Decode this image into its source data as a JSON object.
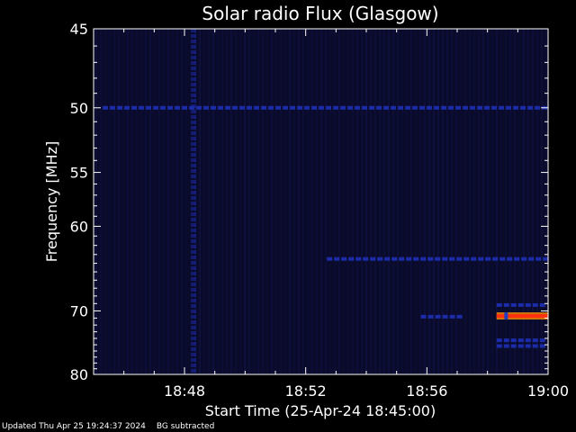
{
  "chart_data": {
    "type": "heatmap",
    "title": "Solar radio Flux (Glasgow)",
    "xlabel": "Start Time (25-Apr-24 18:45:00)",
    "ylabel": "Frequency [MHz]",
    "xlim_minutes": [
      0,
      15
    ],
    "x_ticks": [
      {
        "minute": 3,
        "label": "18:48"
      },
      {
        "minute": 7,
        "label": "18:52"
      },
      {
        "minute": 11,
        "label": "18:56"
      },
      {
        "minute": 15,
        "label": "19:00"
      }
    ],
    "ylim": [
      45,
      80
    ],
    "y_ticks": [
      45,
      50,
      55,
      60,
      70,
      80
    ],
    "y_scale": "reciprocal",
    "background_color": "#000000",
    "colors": {
      "low": "#0a0a2a",
      "mid": "#1c2ca8",
      "high": "#ff3010"
    },
    "features": [
      {
        "name": "",
        "type": "horizontal-band",
        "freq": 50,
        "x_start": 0.3,
        "x_end": 15,
        "intensity": "mid"
      },
      {
        "name": "",
        "type": "horizontal-band",
        "freq": 63.5,
        "x_start": 7.7,
        "x_end": 15,
        "intensity": "mid"
      },
      {
        "name": "",
        "type": "horizontal-band",
        "freq": 69.2,
        "x_start": 13.3,
        "x_end": 15,
        "intensity": "mid"
      },
      {
        "name": "",
        "type": "horizontal-band",
        "freq": 70.7,
        "x_start": 13.3,
        "x_end": 15,
        "intensity": "high"
      },
      {
        "name": "",
        "type": "horizontal-band",
        "freq": 70.8,
        "x_start": 10.8,
        "x_end": 12.2,
        "intensity": "mid"
      },
      {
        "name": "",
        "type": "horizontal-band",
        "freq": 74.3,
        "x_start": 13.3,
        "x_end": 15,
        "intensity": "mid"
      },
      {
        "name": "",
        "type": "horizontal-band",
        "freq": 75.2,
        "x_start": 13.3,
        "x_end": 15,
        "intensity": "mid"
      },
      {
        "name": "",
        "type": "vertical-band",
        "minute": 3.3,
        "f_start": 45,
        "f_end": 80,
        "intensity": "mid"
      }
    ]
  },
  "footer": {
    "updated": "Updated Thu Apr 25 19:24:37 2024",
    "mode": "BG subtracted"
  }
}
